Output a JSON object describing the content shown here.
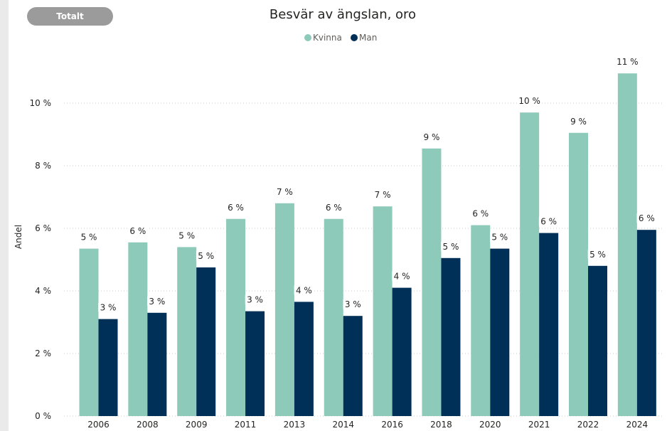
{
  "filter": {
    "totalt_label": "Totalt"
  },
  "chart_data": {
    "type": "bar",
    "title": "Besvär av ängslan, oro",
    "xlabel": "",
    "ylabel": "Andel",
    "ylim": [
      0,
      11
    ],
    "yticks": [
      0,
      2,
      4,
      6,
      8,
      10
    ],
    "ytick_labels": [
      "0 %",
      "2 %",
      "4 %",
      "6 %",
      "8 %",
      "10 %"
    ],
    "grid": true,
    "legend_position": "top-center",
    "categories": [
      "2006",
      "2008",
      "2009",
      "2011",
      "2013",
      "2014",
      "2016",
      "2018",
      "2020",
      "2021",
      "2022",
      "2024"
    ],
    "series": [
      {
        "name": "Kvinna",
        "color": "#8ecab9",
        "values": [
          5.35,
          5.55,
          5.4,
          6.3,
          6.8,
          6.3,
          6.7,
          8.55,
          6.1,
          9.7,
          9.05,
          10.95
        ],
        "labels": [
          "5 %",
          "6 %",
          "5 %",
          "6 %",
          "7 %",
          "6 %",
          "7 %",
          "9 %",
          "6 %",
          "10 %",
          "9 %",
          "11 %"
        ]
      },
      {
        "name": "Man",
        "color": "#003057",
        "values": [
          3.1,
          3.3,
          4.75,
          3.35,
          3.65,
          3.2,
          4.1,
          5.05,
          5.35,
          5.85,
          4.8,
          5.95
        ],
        "labels": [
          "3 %",
          "3 %",
          "5 %",
          "3 %",
          "4 %",
          "3 %",
          "4 %",
          "5 %",
          "5 %",
          "6 %",
          "5 %",
          "6 %"
        ]
      }
    ]
  }
}
